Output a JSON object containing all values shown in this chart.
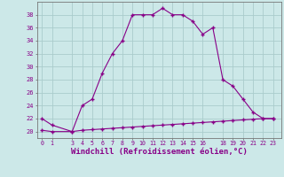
{
  "x_upper": [
    0,
    1,
    3,
    4,
    5,
    6,
    7,
    8,
    9,
    10,
    11,
    12,
    13,
    14,
    15,
    16,
    17,
    18,
    19,
    20,
    21,
    22,
    23
  ],
  "y_upper": [
    22,
    21,
    20,
    24,
    25,
    29,
    32,
    34,
    38,
    38,
    38,
    39,
    38,
    38,
    37,
    35,
    36,
    28,
    27,
    25,
    23,
    22,
    22
  ],
  "x_lower": [
    0,
    1,
    3,
    4,
    5,
    6,
    7,
    8,
    9,
    10,
    11,
    12,
    13,
    14,
    15,
    16,
    17,
    18,
    19,
    20,
    21,
    22,
    23
  ],
  "y_lower": [
    20.2,
    20.0,
    20.0,
    20.2,
    20.3,
    20.4,
    20.5,
    20.6,
    20.7,
    20.8,
    20.9,
    21.0,
    21.1,
    21.2,
    21.3,
    21.4,
    21.5,
    21.6,
    21.7,
    21.8,
    21.9,
    22.0,
    22.0
  ],
  "line_color": "#880088",
  "bg_color": "#cce8e8",
  "grid_color": "#aacccc",
  "xlabel": "Windchill (Refroidissement éolien,°C)",
  "xlabel_fontsize": 6.5,
  "ylabel_ticks": [
    20,
    22,
    24,
    26,
    28,
    30,
    32,
    34,
    36,
    38
  ],
  "x_ticks": [
    0,
    1,
    3,
    4,
    5,
    6,
    7,
    8,
    9,
    10,
    11,
    12,
    13,
    14,
    15,
    16,
    18,
    19,
    20,
    21,
    22,
    23
  ],
  "x_tick_labels": [
    "0",
    "1",
    "3",
    "4",
    "5",
    "6",
    "7",
    "8",
    "9",
    "10",
    "11",
    "12",
    "13",
    "14",
    "15",
    "16",
    "18",
    "19",
    "20",
    "21",
    "22",
    "23"
  ],
  "xlim": [
    -0.5,
    23.8
  ],
  "ylim": [
    19.0,
    40.0
  ]
}
